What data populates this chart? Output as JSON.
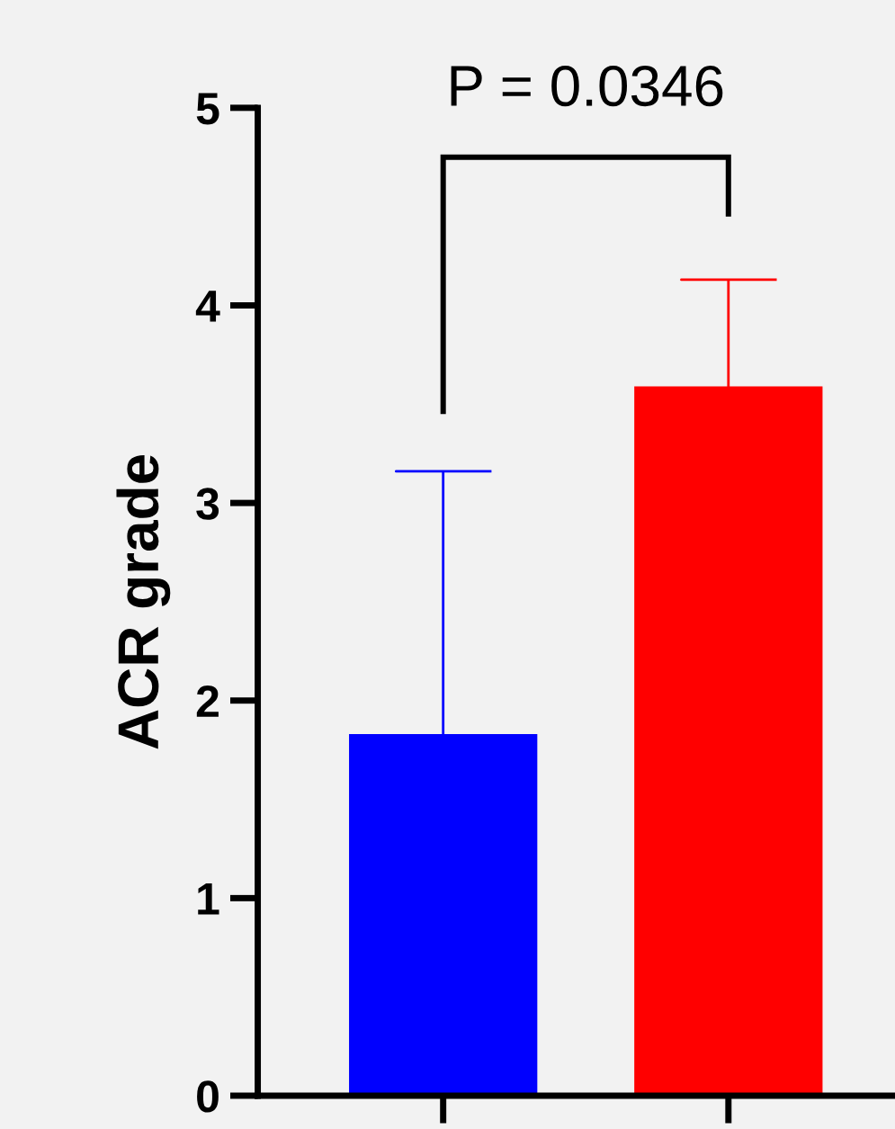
{
  "chart_data": {
    "type": "bar",
    "ylabel": "ACR grade",
    "categories": [
      null,
      null
    ],
    "values": [
      1.83,
      3.59
    ],
    "colors": [
      "#0000ff",
      "#ff0000"
    ],
    "errors": [
      [
        1.83,
        3.16
      ],
      [
        3.59,
        4.13
      ]
    ],
    "ylim": [
      0,
      5
    ],
    "yticks": [
      0,
      1,
      2,
      3,
      4,
      5
    ],
    "annotations": [
      "P = 0.0346"
    ],
    "grid": false
  }
}
